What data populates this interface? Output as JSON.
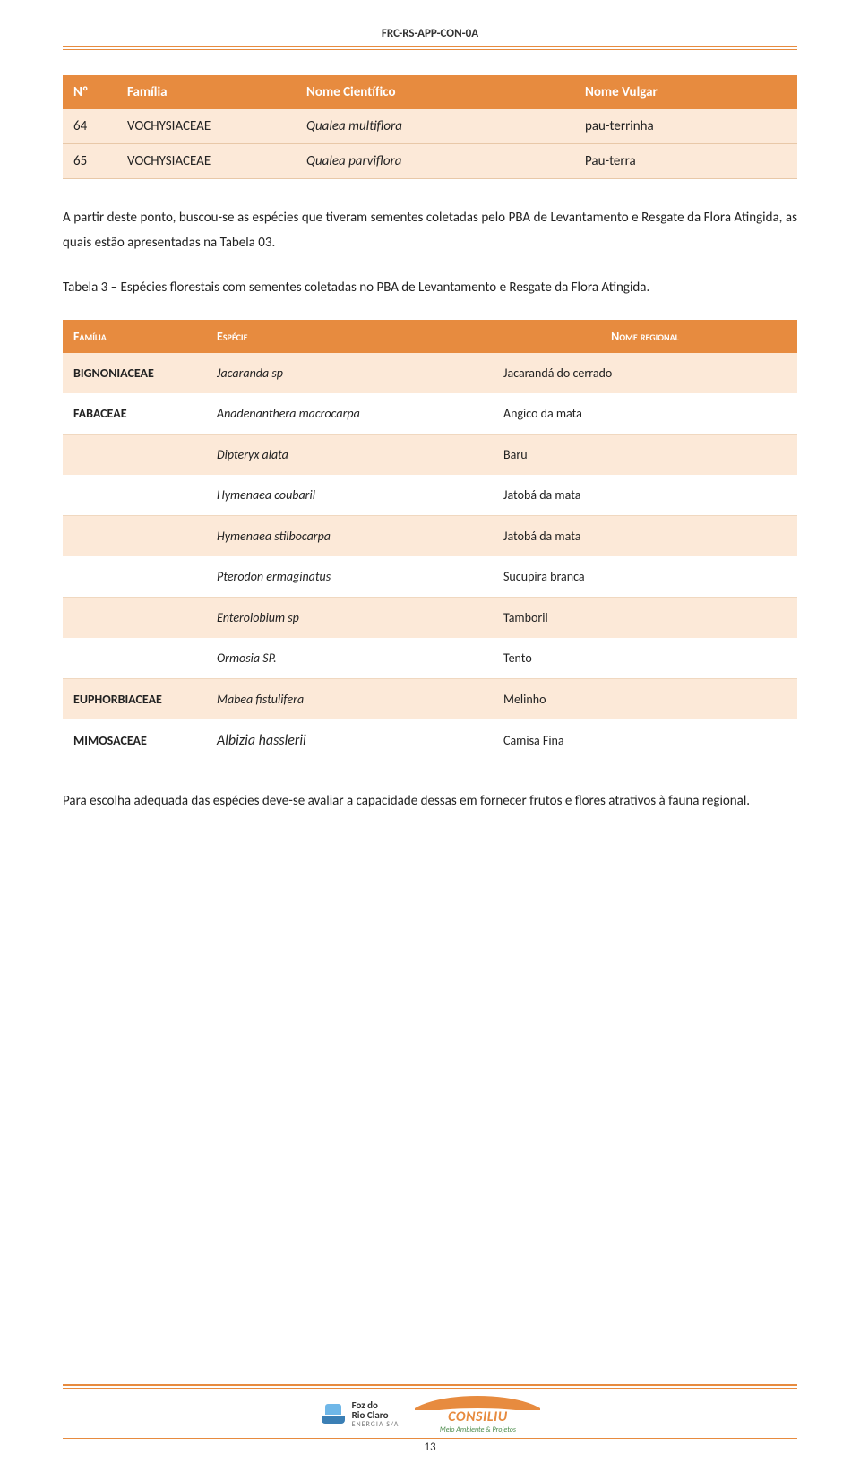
{
  "header": {
    "code": "FRC-RS-APP-CON-0A"
  },
  "table1": {
    "headers": {
      "num": "Nº",
      "familia": "Família",
      "cientifico": "Nome Científico",
      "vulgar": "Nome Vulgar"
    },
    "rows": [
      {
        "num": "64",
        "familia": "VOCHYSIACEAE",
        "cientifico": "Qualea multiflora",
        "vulgar": "pau-terrinha"
      },
      {
        "num": "65",
        "familia": "VOCHYSIACEAE",
        "cientifico": "Qualea parviflora",
        "vulgar": "Pau-terra"
      }
    ],
    "col_widths": {
      "num": 60,
      "familia": 200
    },
    "header_bg": "#e78b3f",
    "header_color": "#ffffff",
    "row_bg": "#fce9d8",
    "border_color": "#e8c8a8",
    "font_size": 15
  },
  "para1": "A partir deste ponto, buscou-se as espécies que tiveram sementes coletadas pelo PBA de Levantamento e Resgate da Flora Atingida, as quais estão apresentadas na Tabela 03.",
  "para2": "Tabela 3 – Espécies florestais com sementes coletadas no PBA de Levantamento e Resgate da Flora Atingida.",
  "table2": {
    "headers": {
      "familia": "Família",
      "especie": "Espécie",
      "nome": "Nome regional"
    },
    "rows": [
      {
        "style": "light",
        "familia_bold": true,
        "familia": "BIGNONIACEAE",
        "especie_italic": true,
        "especie": "Jacaranda sp",
        "nome": "Jacarandá do cerrado"
      },
      {
        "style": "white",
        "familia_bold": true,
        "familia": "FABACEAE",
        "especie_italic": true,
        "especie": "Anadenanthera macrocarpa",
        "nome": "Angico da mata"
      },
      {
        "style": "light",
        "familia": "",
        "especie_italic": true,
        "especie": "Dipteryx alata",
        "nome": "Baru"
      },
      {
        "style": "white",
        "familia": "",
        "especie_italic": true,
        "especie": "Hymenaea coubaril",
        "nome": "Jatobá da mata"
      },
      {
        "style": "light",
        "familia": "",
        "especie_italic": true,
        "especie": "Hymenaea stilbocarpa",
        "nome": "Jatobá da mata"
      },
      {
        "style": "white",
        "familia": "",
        "especie_italic": true,
        "especie": "Pterodon ermaginatus",
        "nome": "Sucupira branca"
      },
      {
        "style": "light",
        "familia": "",
        "especie_italic": true,
        "especie": "Enterolobium sp",
        "nome": "Tamboril"
      },
      {
        "style": "white",
        "familia": "",
        "especie_italic": true,
        "especie": "Ormosia SP.",
        "nome": "Tento"
      },
      {
        "style": "light",
        "familia_bold": true,
        "familia": "EUPHORBIACEAE",
        "especie_italic": true,
        "especie": "Mabea fistulifera",
        "nome": "Melinho"
      },
      {
        "style": "white",
        "familia_bold": true,
        "familia": "MIMOSACEAE",
        "especie_big_italic": true,
        "especie": "Albizia hasslerii",
        "nome": "Camisa Fina"
      }
    ],
    "col_widths": {
      "familia": 160,
      "especie": 320
    },
    "header_bg": "#e78b3f",
    "header_color": "#ffffff",
    "light_bg": "#fce9d8",
    "white_bg": "#ffffff",
    "border_color": "#f0d8c0",
    "font_size": 14
  },
  "para3": "Para escolha adequada das espécies deve-se avaliar a capacidade dessas em fornecer frutos e flores atrativos à fauna regional.",
  "footer": {
    "foz": {
      "line1": "Foz do",
      "line2": "Rio Claro",
      "sub": "ENERGIA S/A"
    },
    "consiliu": {
      "name": "CONSILIU",
      "sub": "Meio Ambiente & Projetos"
    },
    "page_num": "13"
  },
  "colors": {
    "orange": "#e78b3f",
    "light_orange": "#fce9d8",
    "text": "#222222",
    "white": "#ffffff"
  }
}
